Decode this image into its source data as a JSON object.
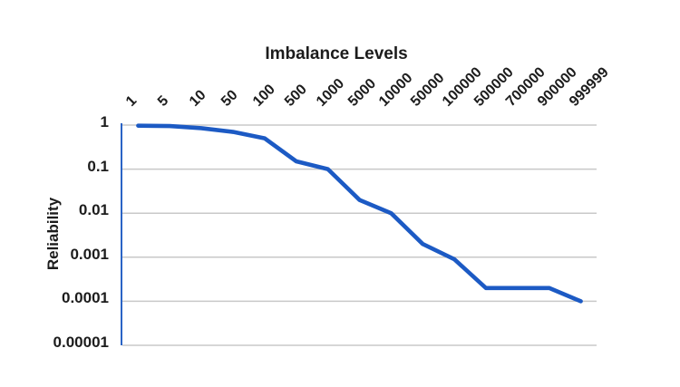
{
  "chart": {
    "background_color": "#ffffff"
  },
  "chart_data": {
    "type": "line",
    "title": "Imbalance Levels",
    "xlabel": "Imbalance Levels",
    "ylabel": "Reliability",
    "categories": [
      "1",
      "5",
      "10",
      "50",
      "100",
      "500",
      "1000",
      "5000",
      "10000",
      "50000",
      "100000",
      "500000",
      "700000",
      "900000",
      "999999"
    ],
    "series": [
      {
        "name": "Reliability",
        "values": [
          0.97,
          0.95,
          0.85,
          0.7,
          0.5,
          0.15,
          0.1,
          0.02,
          0.01,
          0.002,
          0.0009,
          0.0002,
          0.0002,
          0.0002,
          0.0001
        ]
      }
    ],
    "y_scale": "log",
    "y_ticks": [
      "1",
      "0.1",
      "0.01",
      "0.001",
      "0.0001",
      "0.00001"
    ],
    "ylim": [
      1e-05,
      1
    ],
    "grid": "horizontal-only",
    "legend": "none",
    "line_color": "#1c5ac4",
    "axis_line_color": "#2a64c6",
    "gridline_color": "#c8c8c8",
    "text_color": "#1c1c1c"
  }
}
